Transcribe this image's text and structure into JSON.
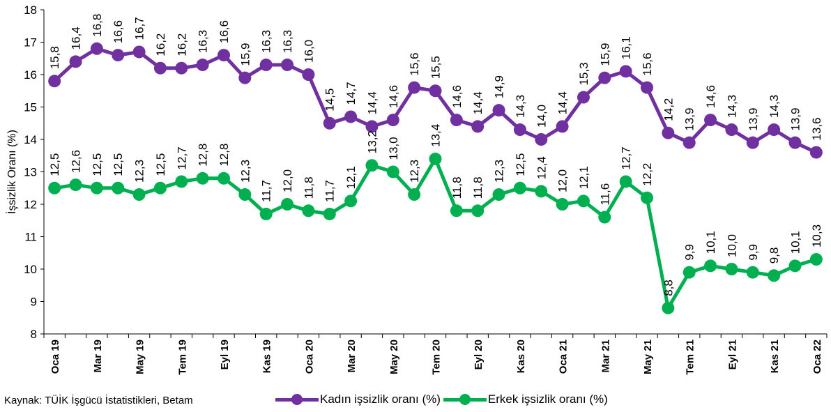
{
  "chart_data": {
    "type": "line",
    "ylabel": "İşsizlik Oranı (%)",
    "xlabel": "",
    "ylim": [
      8,
      18
    ],
    "yticks": [
      8,
      9,
      10,
      11,
      12,
      13,
      14,
      15,
      16,
      17,
      18
    ],
    "grid": false,
    "legend_position": "bottom",
    "x": [
      "Oca 19",
      "Şub 19",
      "Mar 19",
      "Nis 19",
      "May 19",
      "Haz 19",
      "Tem 19",
      "Ağu 19",
      "Eyl 19",
      "Eki 19",
      "Kas 19",
      "Ara 19",
      "Oca 20",
      "Şub 20",
      "Mar 20",
      "Nis 20",
      "May 20",
      "Haz 20",
      "Tem 20",
      "Ağu 20",
      "Eyl 20",
      "Eki 20",
      "Kas 20",
      "Ara 20",
      "Oca 21",
      "Şub 21",
      "Mar 21",
      "Nis 21",
      "May 21",
      "Haz 21",
      "Tem 21",
      "Ağu 21",
      "Eyl 21",
      "Eki 21",
      "Kas 21",
      "Ara 21",
      "Oca 22"
    ],
    "xtick_labels_shown": [
      "Oca 19",
      "Mar 19",
      "May 19",
      "Tem 19",
      "Eyl 19",
      "Kas 19",
      "Oca 20",
      "Mar 20",
      "May 20",
      "Tem 20",
      "Eyl 20",
      "Kas 20",
      "Oca 21",
      "Mar 21",
      "May 21",
      "Tem 21",
      "Eyl 21",
      "Kas 21",
      "Oca 22"
    ],
    "series": [
      {
        "name": "Kadın işsizlik oranı (%)",
        "color": "#7030a0",
        "values": [
          15.8,
          16.4,
          16.8,
          16.6,
          16.7,
          16.2,
          16.2,
          16.3,
          16.6,
          15.9,
          16.3,
          16.3,
          16.0,
          14.5,
          14.7,
          14.4,
          14.6,
          15.6,
          15.5,
          14.6,
          14.4,
          14.9,
          14.3,
          14.0,
          14.4,
          15.3,
          15.9,
          16.1,
          15.6,
          14.2,
          13.9,
          14.6,
          14.3,
          13.9,
          14.3,
          13.9,
          13.6
        ],
        "labels": [
          "15,8",
          "16,4",
          "16,8",
          "16,6",
          "16,7",
          "16,2",
          "16,2",
          "16,3",
          "16,6",
          "15,9",
          "16,3",
          "16,3",
          "16,0",
          "14,5",
          "14,7",
          "14,4",
          "14,6",
          "15,6",
          "15,5",
          "14,6",
          "14,4",
          "14,9",
          "14,3",
          "14,0",
          "14,4",
          "15,3",
          "15,9",
          "16,1",
          "15,6",
          "14,2",
          "13,9",
          "14,6",
          "14,3",
          "13,9",
          "14,3",
          "13,9",
          "13,6"
        ]
      },
      {
        "name": "Erkek işsizlik oranı (%)",
        "color": "#00b050",
        "values": [
          12.5,
          12.6,
          12.5,
          12.5,
          12.3,
          12.5,
          12.7,
          12.8,
          12.8,
          12.3,
          11.7,
          12.0,
          11.8,
          11.7,
          12.1,
          13.2,
          13.0,
          12.3,
          13.4,
          11.8,
          11.8,
          12.3,
          12.5,
          12.4,
          12.0,
          12.1,
          11.6,
          12.7,
          12.2,
          8.8,
          9.9,
          10.1,
          10.0,
          9.9,
          9.8,
          10.1,
          10.3
        ],
        "labels": [
          "12,5",
          "12,6",
          "12,5",
          "12,5",
          "12,3",
          "12,5",
          "12,7",
          "12,8",
          "12,8",
          "12,3",
          "11,7",
          "12,0",
          "11,8",
          "11,7",
          "12,1",
          "13,2",
          "13,0",
          "12,3",
          "13,4",
          "11,8",
          "11,8",
          "12,3",
          "12,5",
          "12,4",
          "12,0",
          "12,1",
          "11,6",
          "12,7",
          "12,2",
          "8,8",
          "9,9",
          "10,1",
          "10,0",
          "9,9",
          "9,8",
          "10,1",
          "10,3"
        ]
      }
    ]
  },
  "source_text": "Kaynak: TÜİK İşgücü İstatistikleri, Betam"
}
